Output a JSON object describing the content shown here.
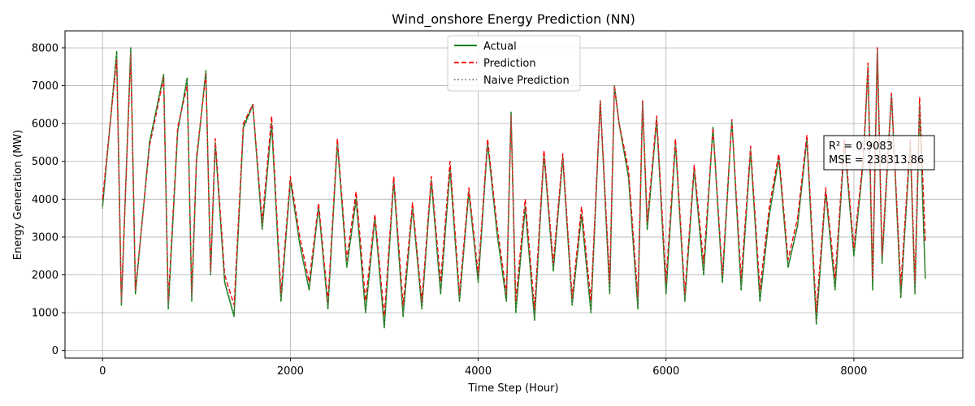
{
  "chart_data": {
    "type": "line",
    "title": "Wind_onshore Energy Prediction (NN)",
    "xlabel": "Time Step (Hour)",
    "ylabel": "Energy Generation (MW)",
    "xlim": [
      -400,
      9160
    ],
    "ylim": [
      -200,
      8450
    ],
    "xticks": [
      0,
      2000,
      4000,
      6000,
      8000
    ],
    "yticks": [
      0,
      1000,
      2000,
      3000,
      4000,
      5000,
      6000,
      7000,
      8000
    ],
    "grid": true,
    "legend_position": "top-center",
    "series": [
      {
        "name": "Actual",
        "color": "#008000",
        "style": "solid",
        "x": [
          0,
          150,
          200,
          300,
          350,
          500,
          650,
          700,
          800,
          900,
          950,
          1000,
          1100,
          1150,
          1200,
          1300,
          1400,
          1500,
          1600,
          1700,
          1800,
          1900,
          2000,
          2100,
          2200,
          2300,
          2400,
          2500,
          2600,
          2700,
          2800,
          2900,
          3000,
          3100,
          3200,
          3300,
          3400,
          3500,
          3600,
          3700,
          3800,
          3900,
          4000,
          4100,
          4200,
          4300,
          4350,
          4400,
          4500,
          4600,
          4700,
          4800,
          4900,
          5000,
          5100,
          5200,
          5300,
          5400,
          5450,
          5500,
          5600,
          5700,
          5750,
          5800,
          5900,
          6000,
          6100,
          6200,
          6300,
          6400,
          6500,
          6600,
          6700,
          6800,
          6900,
          7000,
          7100,
          7200,
          7300,
          7400,
          7500,
          7600,
          7700,
          7800,
          7900,
          8000,
          8100,
          8150,
          8200,
          8250,
          8300,
          8400,
          8500,
          8600,
          8650,
          8700,
          8760
        ],
        "values": [
          3800,
          7900,
          1200,
          8000,
          1500,
          5500,
          7300,
          1100,
          5800,
          7200,
          1300,
          5000,
          7400,
          2000,
          5500,
          1800,
          900,
          5900,
          6500,
          3200,
          6000,
          1300,
          4500,
          2800,
          1600,
          3800,
          1100,
          5500,
          2200,
          4000,
          1000,
          3500,
          600,
          4500,
          900,
          3800,
          1100,
          4500,
          1500,
          4800,
          1300,
          4200,
          1800,
          5500,
          3100,
          1300,
          6300,
          1000,
          3800,
          800,
          5200,
          2100,
          5100,
          1200,
          3600,
          1000,
          6600,
          1500,
          7000,
          6000,
          4600,
          1100,
          6600,
          3200,
          6100,
          1500,
          5500,
          1300,
          4800,
          2000,
          5900,
          1800,
          6100,
          1600,
          5300,
          1300,
          3600,
          5100,
          2200,
          3300,
          5600,
          700,
          4200,
          1600,
          5500,
          2500,
          5000,
          7500,
          1600,
          8000,
          2300,
          6800,
          1400,
          5500,
          1500,
          6500,
          1900
        ]
      },
      {
        "name": "Prediction",
        "color": "#ff0000",
        "style": "dashed",
        "x": [
          0,
          150,
          200,
          300,
          350,
          500,
          650,
          700,
          800,
          900,
          950,
          1000,
          1100,
          1150,
          1200,
          1300,
          1400,
          1500,
          1600,
          1700,
          1800,
          1900,
          2000,
          2100,
          2200,
          2300,
          2400,
          2500,
          2600,
          2700,
          2800,
          2900,
          3000,
          3100,
          3200,
          3300,
          3400,
          3500,
          3600,
          3700,
          3800,
          3900,
          4000,
          4100,
          4200,
          4300,
          4350,
          4400,
          4500,
          4600,
          4700,
          4800,
          4900,
          5000,
          5100,
          5200,
          5300,
          5400,
          5450,
          5500,
          5600,
          5700,
          5750,
          5800,
          5900,
          6000,
          6100,
          6200,
          6300,
          6400,
          6500,
          6600,
          6700,
          6800,
          6900,
          7000,
          7100,
          7200,
          7300,
          7400,
          7500,
          7600,
          7700,
          7800,
          7900,
          8000,
          8100,
          8150,
          8200,
          8250,
          8300,
          8400,
          8500,
          8600,
          8650,
          8700,
          8760
        ],
        "values": [
          4000,
          7700,
          1300,
          7800,
          1600,
          5400,
          7200,
          1300,
          5900,
          7000,
          1500,
          5100,
          7300,
          2100,
          5600,
          2000,
          1200,
          6000,
          6500,
          3400,
          6200,
          1500,
          4600,
          3000,
          1800,
          3900,
          1300,
          5600,
          2400,
          4200,
          1300,
          3600,
          900,
          4600,
          1200,
          3900,
          1300,
          4600,
          1800,
          5000,
          1500,
          4300,
          2000,
          5600,
          3300,
          1500,
          6200,
          1300,
          4000,
          1100,
          5300,
          2300,
          5200,
          1400,
          3800,
          1300,
          6600,
          1800,
          7000,
          6000,
          4800,
          1400,
          6600,
          3400,
          6200,
          1800,
          5600,
          1500,
          4900,
          2300,
          5900,
          2000,
          6100,
          1900,
          5400,
          1600,
          3800,
          5200,
          2400,
          3500,
          5700,
          1000,
          4300,
          1900,
          5600,
          2700,
          5100,
          7600,
          1900,
          8000,
          2500,
          6800,
          1700,
          5600,
          1800,
          6700,
          2900
        ]
      },
      {
        "name": "Naive Prediction",
        "color": "#808080",
        "style": "dotted",
        "x": [
          0,
          150,
          200,
          300,
          350,
          500,
          650,
          700,
          800,
          900,
          950,
          1000,
          1100,
          1150,
          1200,
          1300,
          1400,
          1500,
          1600,
          1700,
          1800,
          1900,
          2000,
          2100,
          2200,
          2300,
          2400,
          2500,
          2600,
          2700,
          2800,
          2900,
          3000,
          3100,
          3200,
          3300,
          3400,
          3500,
          3600,
          3700,
          3800,
          3900,
          4000,
          4100,
          4200,
          4300,
          4350,
          4400,
          4500,
          4600,
          4700,
          4800,
          4900,
          5000,
          5100,
          5200,
          5300,
          5400,
          5450,
          5500,
          5600,
          5700,
          5750,
          5800,
          5900,
          6000,
          6100,
          6200,
          6300,
          6400,
          6500,
          6600,
          6700,
          6800,
          6900,
          7000,
          7100,
          7200,
          7300,
          7400,
          7500,
          7600,
          7700,
          7800,
          7900,
          8000,
          8100,
          8150,
          8200,
          8250,
          8300,
          8400,
          8500,
          8600,
          8650,
          8700,
          8760
        ],
        "values": [
          3750,
          7850,
          1250,
          7950,
          1550,
          5450,
          7250,
          1150,
          5750,
          7150,
          1350,
          4950,
          7350,
          2050,
          5450,
          1850,
          950,
          5850,
          6450,
          3250,
          5950,
          1350,
          4450,
          2850,
          1650,
          3750,
          1150,
          5450,
          2250,
          3950,
          1050,
          3450,
          650,
          4450,
          950,
          3750,
          1150,
          4450,
          1550,
          4750,
          1350,
          4150,
          1850,
          5450,
          3150,
          1350,
          6250,
          1050,
          3750,
          850,
          5150,
          2150,
          5050,
          1250,
          3550,
          1050,
          6550,
          1550,
          6950,
          5950,
          4550,
          1150,
          6550,
          3250,
          6050,
          1550,
          5450,
          1350,
          4750,
          2050,
          5850,
          1850,
          6050,
          1650,
          5250,
          1350,
          3550,
          5050,
          2250,
          3250,
          5550,
          750,
          4150,
          1650,
          5450,
          2550,
          4950,
          7450,
          1650,
          7950,
          2350,
          6750,
          1450,
          5450,
          1550,
          6450,
          1950
        ]
      }
    ],
    "annotation": {
      "lines": [
        "R² = 0.9083",
        "MSE = 238313.86"
      ]
    }
  }
}
